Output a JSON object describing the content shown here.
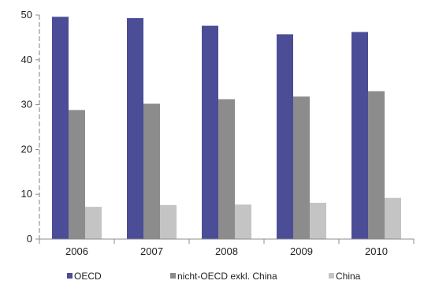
{
  "chart_data": {
    "type": "bar",
    "categories": [
      "2006",
      "2007",
      "2008",
      "2009",
      "2010"
    ],
    "series": [
      {
        "name": "OECD",
        "color": "#4b4d97",
        "values": [
          49.6,
          49.3,
          47.6,
          45.7,
          46.2
        ]
      },
      {
        "name": "nicht-OECD exkl. China",
        "color": "#8c8c8c",
        "values": [
          28.8,
          30.2,
          31.2,
          31.8,
          33.0
        ]
      },
      {
        "name": "China",
        "color": "#c4c4c4",
        "values": [
          7.2,
          7.6,
          7.7,
          8.1,
          9.2
        ]
      }
    ],
    "ylim": [
      0,
      50
    ],
    "yticks": [
      "0",
      "10",
      "20",
      "30",
      "40",
      "50"
    ],
    "grid": false,
    "legend_position": "bottom"
  }
}
